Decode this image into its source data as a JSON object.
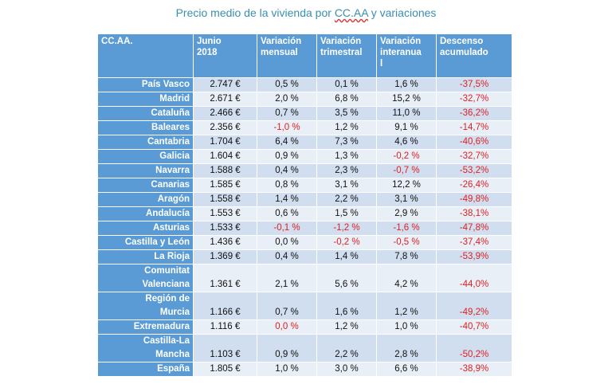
{
  "title": {
    "prefix": "Precio medio de la vivienda por ",
    "cc": "CC.AA",
    "suffix": " y variaciones"
  },
  "headers": [
    [
      "CC.AA."
    ],
    [
      "Junio",
      "2018"
    ],
    [
      "Variación",
      "mensual"
    ],
    [
      "Variación",
      "trimestral"
    ],
    [
      "Variación",
      "interanua",
      "l"
    ],
    [
      "Descenso",
      "acumulado"
    ]
  ],
  "rows": [
    {
      "name": [
        "País Vasco"
      ],
      "precio": "2.747 €",
      "mensual": "0,5 %",
      "trimestral": "0,1 %",
      "interanual": "1,6 %",
      "descenso": "-37,5%"
    },
    {
      "name": [
        "Madrid"
      ],
      "precio": "2.671 €",
      "mensual": "2,0 %",
      "trimestral": "6,8 %",
      "interanual": "15,2 %",
      "descenso": "-32,7%"
    },
    {
      "name": [
        "Cataluña"
      ],
      "precio": "2.466 €",
      "mensual": "0,7 %",
      "trimestral": "3,5 %",
      "interanual": "11,0 %",
      "descenso": "-36,2%"
    },
    {
      "name": [
        "Baleares"
      ],
      "precio": "2.356 €",
      "mensual": "-1,0 %",
      "trimestral": "1,2 %",
      "interanual": "9,1 %",
      "descenso": "-14,7%"
    },
    {
      "name": [
        "Cantabria"
      ],
      "precio": "1.704 €",
      "mensual": "6,4 %",
      "trimestral": "7,3 %",
      "interanual": "4,6 %",
      "descenso": "-40,6%"
    },
    {
      "name": [
        "Galicia"
      ],
      "precio": "1.604 €",
      "mensual": "0,9 %",
      "trimestral": "1,3 %",
      "interanual": "-0,2 %",
      "descenso": "-32,7%"
    },
    {
      "name": [
        "Navarra"
      ],
      "precio": "1.588 €",
      "mensual": "0,4 %",
      "trimestral": "2,3 %",
      "interanual": "-0,7 %",
      "descenso": "-53,2%"
    },
    {
      "name": [
        "Canarias"
      ],
      "precio": "1.585 €",
      "mensual": "0,8 %",
      "trimestral": "3,1 %",
      "interanual": "12,2 %",
      "descenso": "-26,4%"
    },
    {
      "name": [
        "Aragón"
      ],
      "precio": "1.558 €",
      "mensual": "1,4 %",
      "trimestral": "2,2 %",
      "interanual": "3,1 %",
      "descenso": "-49,8%"
    },
    {
      "name": [
        "Andalucía"
      ],
      "precio": "1.553 €",
      "mensual": "0,6 %",
      "trimestral": "1,5 %",
      "interanual": "2,9 %",
      "descenso": "-38,1%"
    },
    {
      "name": [
        "Asturias"
      ],
      "precio": "1.533 €",
      "mensual": "-0,1 %",
      "trimestral": "-1,2 %",
      "interanual": "-1,6 %",
      "descenso": "-47,8%"
    },
    {
      "name": [
        "Castilla y León"
      ],
      "precio": "1.436 €",
      "mensual": "0,0 %",
      "trimestral": "-0,2 %",
      "interanual": "-0,5 %",
      "descenso": "-37,4%"
    },
    {
      "name": [
        "La Rioja"
      ],
      "precio": "1.369 €",
      "mensual": "0,4 %",
      "trimestral": "1,4 %",
      "interanual": "7,8 %",
      "descenso": "-53,9%"
    },
    {
      "name": [
        "Comunitat",
        "Valenciana"
      ],
      "precio": "1.361 €",
      "mensual": "2,1 %",
      "trimestral": "5,6 %",
      "interanual": "4,2 %",
      "descenso": "-44,0%"
    },
    {
      "name": [
        "Región de",
        "Murcia"
      ],
      "precio": "1.166 €",
      "mensual": "0,7 %",
      "trimestral": "1,6 %",
      "interanual": "1,2 %",
      "descenso": "-49,2%"
    },
    {
      "name": [
        "Extremadura"
      ],
      "precio": "1.116 €",
      "mensual": "0,0 %",
      "trimestral": "1,2 %",
      "interanual": "1,0 %",
      "descenso": "-40,7%"
    },
    {
      "name": [
        "Castilla-La",
        "Mancha"
      ],
      "precio": "1.103 €",
      "mensual": "0,9 %",
      "trimestral": "2,2 %",
      "interanual": "2,8 %",
      "descenso": "-50,2%"
    },
    {
      "name": [
        "España"
      ],
      "precio": "1.805 €",
      "mensual": "1,0 %",
      "trimestral": "3,0 %",
      "interanual": "6,6 %",
      "descenso": "-38,9%"
    }
  ],
  "negative_cells": {
    "3": [
      "mensual"
    ],
    "5": [
      "interanual"
    ],
    "6": [
      "interanual"
    ],
    "10": [
      "mensual",
      "trimestral",
      "interanual"
    ],
    "11": [
      "trimestral",
      "interanual"
    ],
    "15": [
      "mensual"
    ]
  },
  "colors": {
    "header_bg": "#5b9bd5",
    "row_dark": "#d0deef",
    "row_light": "#e9eff7",
    "negative": "#e02020",
    "title": "#3a8fb0"
  }
}
